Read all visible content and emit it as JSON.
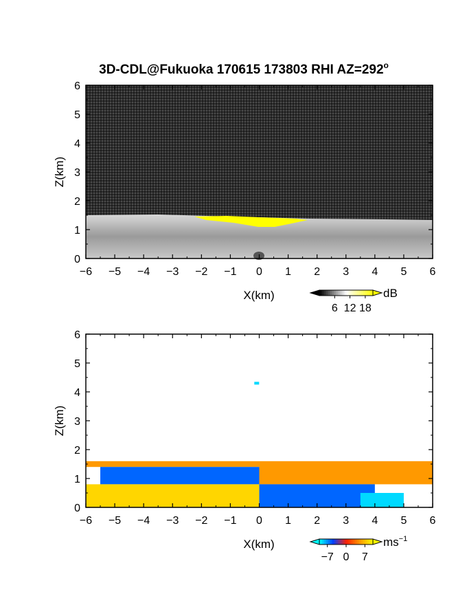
{
  "title": "3D-CDL@Fukuoka 170615 173803 RHI AZ=292",
  "title_superscript": "o",
  "chart_data": [
    {
      "type": "heatmap",
      "name": "intensity",
      "xlabel": "X(km)",
      "ylabel": "Z(km)",
      "xlim": [
        -6,
        6
      ],
      "ylim": [
        0,
        6
      ],
      "x_ticks": [
        "−6",
        "−5",
        "−4",
        "−3",
        "−2",
        "−1",
        "0",
        "1",
        "2",
        "3",
        "4",
        "5",
        "6"
      ],
      "y_ticks": [
        "0",
        "1",
        "2",
        "3",
        "4",
        "5",
        "6"
      ],
      "colorbar": {
        "ticks": [
          "6",
          "12",
          "18"
        ],
        "unit": "dB",
        "min": 0,
        "max": 21,
        "tick_values": [
          6,
          12,
          18
        ],
        "colors": [
          "#000000",
          "#ffffff",
          "#ffff00"
        ]
      },
      "layer_top_km": 1.5,
      "saturated_band": {
        "x": [
          -2.2,
          1.8
        ],
        "z": [
          1.1,
          1.45
        ]
      }
    },
    {
      "type": "heatmap",
      "name": "velocity",
      "xlabel": "X(km)",
      "ylabel": "Z(km)",
      "xlim": [
        -6,
        6
      ],
      "ylim": [
        0,
        6
      ],
      "x_ticks": [
        "−6",
        "−5",
        "−4",
        "−3",
        "−2",
        "−1",
        "0",
        "1",
        "2",
        "3",
        "4",
        "5",
        "6"
      ],
      "y_ticks": [
        "0",
        "1",
        "2",
        "3",
        "4",
        "5",
        "6"
      ],
      "colorbar": {
        "ticks": [
          "−7",
          "0",
          "7"
        ],
        "unit": "ms",
        "unit_superscript": "−1",
        "min": -10,
        "max": 10,
        "tick_values": [
          -7,
          0,
          7
        ],
        "colors": [
          "#00ffff",
          "#0040ff",
          "#ff2000",
          "#ff9900",
          "#ffff00"
        ]
      },
      "layer_top_km": 1.6,
      "regions": [
        {
          "x": [
            -6,
            0
          ],
          "z": [
            1.4,
            1.6
          ],
          "velocity": 5
        },
        {
          "x": [
            -5.5,
            0
          ],
          "z": [
            0.8,
            1.4
          ],
          "velocity": -6
        },
        {
          "x": [
            -6,
            0
          ],
          "z": [
            0,
            0.8
          ],
          "velocity": 8
        },
        {
          "x": [
            0,
            6
          ],
          "z": [
            0.8,
            1.6
          ],
          "velocity": 5
        },
        {
          "x": [
            0,
            4
          ],
          "z": [
            0,
            0.8
          ],
          "velocity": -6
        },
        {
          "x": [
            3.5,
            5
          ],
          "z": [
            0,
            0.5
          ],
          "velocity": -9
        }
      ],
      "isolated_echo": {
        "x": -0.1,
        "z": 4.3,
        "velocity": -9
      }
    }
  ]
}
